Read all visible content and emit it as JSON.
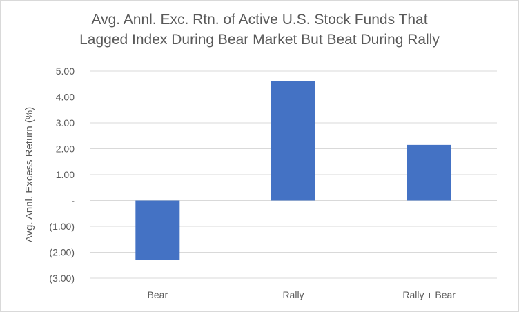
{
  "chart_data": {
    "type": "bar",
    "title_lines": [
      "Avg. Annl. Exc. Rtn. of Active U.S. Stock Funds That",
      "Lagged Index During Bear Market But Beat During Rally"
    ],
    "xlabel": "",
    "ylabel": "Avg. Annl. Excess Return (%)",
    "categories": [
      "Bear",
      "Rally",
      "Rally + Bear"
    ],
    "values": [
      -2.3,
      4.6,
      2.15
    ],
    "ylim": [
      -3.0,
      5.0
    ],
    "yticks": [
      {
        "value": 5.0,
        "label": "5.00"
      },
      {
        "value": 4.0,
        "label": "4.00"
      },
      {
        "value": 3.0,
        "label": "3.00"
      },
      {
        "value": 2.0,
        "label": "2.00"
      },
      {
        "value": 1.0,
        "label": "1.00"
      },
      {
        "value": 0.0,
        "label": "-"
      },
      {
        "value": -1.0,
        "label": "(1.00)"
      },
      {
        "value": -2.0,
        "label": "(2.00)"
      },
      {
        "value": -3.0,
        "label": "(3.00)"
      }
    ],
    "grid": true,
    "bar_color": "#4472c4",
    "grid_color": "#d9d9d9"
  }
}
